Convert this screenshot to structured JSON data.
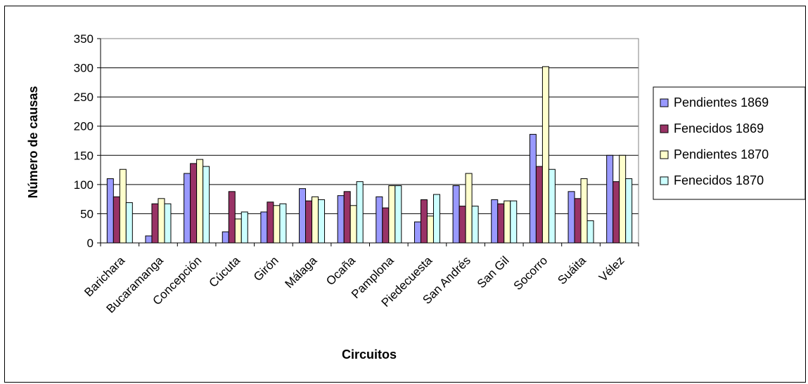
{
  "chart_data": {
    "type": "bar",
    "xlabel": "Circuitos",
    "ylabel": "Número de causas",
    "ylim": [
      0,
      350
    ],
    "yticks": [
      0,
      50,
      100,
      150,
      200,
      250,
      300,
      350
    ],
    "categories": [
      "Barichara",
      "Bucaramanga",
      "Concepción",
      "Cúcuta",
      "Girón",
      "Málaga",
      "Ocaña",
      "Pamplona",
      "Piedecuesta",
      "San Andrés",
      "San Gil",
      "Socorro",
      "Suáita",
      "Vélez"
    ],
    "series": [
      {
        "name": "Pendientes 1869",
        "color": "#9999FF",
        "values": [
          110,
          12,
          119,
          19,
          53,
          93,
          81,
          79,
          36,
          98,
          74,
          186,
          88,
          150
        ]
      },
      {
        "name": "Fenecidos 1869",
        "color": "#993366",
        "values": [
          79,
          67,
          136,
          88,
          70,
          72,
          88,
          60,
          74,
          63,
          67,
          131,
          76,
          105
        ]
      },
      {
        "name": "Pendientes 1870",
        "color": "#FFFFCC",
        "values": [
          126,
          76,
          143,
          41,
          64,
          79,
          64,
          98,
          46,
          119,
          72,
          302,
          110,
          150
        ]
      },
      {
        "name": "Fenecidos 1870",
        "color": "#CCFFFF",
        "values": [
          69,
          67,
          131,
          53,
          67,
          74,
          105,
          98,
          83,
          63,
          72,
          126,
          38,
          110
        ]
      }
    ],
    "grid": true,
    "plot_background": "#FFFFFF",
    "legend_position": "right"
  }
}
